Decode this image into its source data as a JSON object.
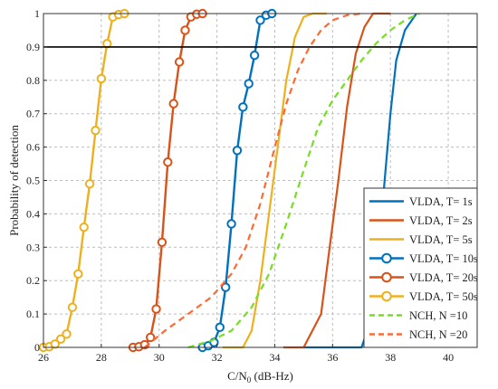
{
  "chart_data": {
    "type": "line",
    "xlabel": "C/N",
    "xlabel_sub": "0",
    "xlabel_suffix": " (dB-Hz)",
    "ylabel": "Probability of detection",
    "xlim": [
      26,
      41
    ],
    "ylim": [
      0,
      1
    ],
    "xticks": [
      26,
      28,
      30,
      32,
      34,
      36,
      38,
      40
    ],
    "yticks": [
      0,
      0.1,
      0.2,
      0.3,
      0.4,
      0.5,
      0.6,
      0.7,
      0.8,
      0.9,
      1
    ],
    "ytick_labels": [
      "0",
      "0.1",
      "0.2",
      "0.3",
      "0.4",
      "0.5",
      "0.6",
      "0.7",
      "0.8",
      "0.9",
      "1"
    ],
    "grid": true,
    "legend_position": "bottom-right",
    "reference_line": {
      "y": 0.9,
      "color": "#000000"
    },
    "series": [
      {
        "name": "VLDA, T= 1s",
        "color": "#0072BD",
        "style": "solid",
        "marker": false,
        "points": [
          [
            35.0,
            0
          ],
          [
            36.0,
            0
          ],
          [
            37.0,
            0
          ],
          [
            37.4,
            0.1
          ],
          [
            37.6,
            0.3
          ],
          [
            37.8,
            0.5
          ],
          [
            38.0,
            0.7
          ],
          [
            38.2,
            0.86
          ],
          [
            38.5,
            0.95
          ],
          [
            38.9,
            1.0
          ]
        ]
      },
      {
        "name": "VLDA, T= 2s",
        "color": "#D95319",
        "style": "solid",
        "marker": false,
        "points": [
          [
            34.3,
            0
          ],
          [
            35.0,
            0
          ],
          [
            35.6,
            0.1
          ],
          [
            35.9,
            0.3
          ],
          [
            36.2,
            0.5
          ],
          [
            36.5,
            0.72
          ],
          [
            36.8,
            0.88
          ],
          [
            37.1,
            0.96
          ],
          [
            37.4,
            1.0
          ],
          [
            38.0,
            1.0
          ]
        ]
      },
      {
        "name": "VLDA, T= 5s",
        "color": "#EDB120",
        "style": "solid",
        "marker": false,
        "points": [
          [
            32.2,
            0
          ],
          [
            32.9,
            0
          ],
          [
            33.2,
            0.05
          ],
          [
            33.5,
            0.2
          ],
          [
            33.8,
            0.4
          ],
          [
            34.1,
            0.6
          ],
          [
            34.4,
            0.8
          ],
          [
            34.7,
            0.93
          ],
          [
            35.0,
            0.99
          ],
          [
            35.3,
            1.0
          ],
          [
            35.8,
            1.0
          ]
        ]
      },
      {
        "name": "VLDA, T= 10s",
        "color": "#0072BD",
        "style": "solid",
        "marker": true,
        "points": [
          [
            31.5,
            0
          ],
          [
            31.7,
            0.005
          ],
          [
            31.9,
            0.015
          ],
          [
            32.1,
            0.06
          ],
          [
            32.3,
            0.18
          ],
          [
            32.5,
            0.37
          ],
          [
            32.7,
            0.59
          ],
          [
            32.9,
            0.72
          ],
          [
            33.1,
            0.79
          ],
          [
            33.3,
            0.875
          ],
          [
            33.5,
            0.98
          ],
          [
            33.7,
            0.995
          ],
          [
            33.9,
            1.0
          ]
        ]
      },
      {
        "name": "VLDA, T= 20s",
        "color": "#D95319",
        "style": "solid",
        "marker": true,
        "points": [
          [
            29.1,
            0
          ],
          [
            29.3,
            0.002
          ],
          [
            29.5,
            0.008
          ],
          [
            29.7,
            0.03
          ],
          [
            29.9,
            0.115
          ],
          [
            30.1,
            0.315
          ],
          [
            30.3,
            0.555
          ],
          [
            30.5,
            0.73
          ],
          [
            30.7,
            0.855
          ],
          [
            30.9,
            0.95
          ],
          [
            31.1,
            0.99
          ],
          [
            31.3,
            0.998
          ],
          [
            31.5,
            1.0
          ]
        ]
      },
      {
        "name": "VLDA, T= 50s",
        "color": "#EDB120",
        "style": "solid",
        "marker": true,
        "points": [
          [
            26.0,
            0
          ],
          [
            26.2,
            0.002
          ],
          [
            26.4,
            0.01
          ],
          [
            26.6,
            0.025
          ],
          [
            26.8,
            0.04
          ],
          [
            27.0,
            0.12
          ],
          [
            27.2,
            0.22
          ],
          [
            27.4,
            0.36
          ],
          [
            27.6,
            0.49
          ],
          [
            27.8,
            0.65
          ],
          [
            28.0,
            0.805
          ],
          [
            28.2,
            0.91
          ],
          [
            28.4,
            0.99
          ],
          [
            28.6,
            0.997
          ],
          [
            28.8,
            1.0
          ]
        ]
      },
      {
        "name": "NCH, N =10",
        "color": "#77DD22",
        "style": "dashed",
        "marker": false,
        "points": [
          [
            31.0,
            0
          ],
          [
            31.8,
            0.02
          ],
          [
            32.5,
            0.05
          ],
          [
            33.2,
            0.12
          ],
          [
            33.8,
            0.22
          ],
          [
            34.4,
            0.37
          ],
          [
            35.0,
            0.53
          ],
          [
            35.5,
            0.66
          ],
          [
            36.0,
            0.74
          ],
          [
            36.5,
            0.8
          ],
          [
            37.0,
            0.86
          ],
          [
            37.5,
            0.91
          ],
          [
            38.0,
            0.95
          ],
          [
            38.5,
            0.98
          ],
          [
            39.0,
            1.0
          ]
        ]
      },
      {
        "name": "NCH, N =20",
        "color": "#FF6A33",
        "style": "dashed",
        "marker": false,
        "points": [
          [
            29.5,
            0
          ],
          [
            30.2,
            0.05
          ],
          [
            31.0,
            0.1
          ],
          [
            31.8,
            0.15
          ],
          [
            32.5,
            0.22
          ],
          [
            33.0,
            0.3
          ],
          [
            33.5,
            0.43
          ],
          [
            34.0,
            0.6
          ],
          [
            34.4,
            0.73
          ],
          [
            34.8,
            0.83
          ],
          [
            35.2,
            0.9
          ],
          [
            35.6,
            0.95
          ],
          [
            36.0,
            0.98
          ],
          [
            36.5,
            0.995
          ],
          [
            37.0,
            1.0
          ]
        ]
      }
    ]
  }
}
